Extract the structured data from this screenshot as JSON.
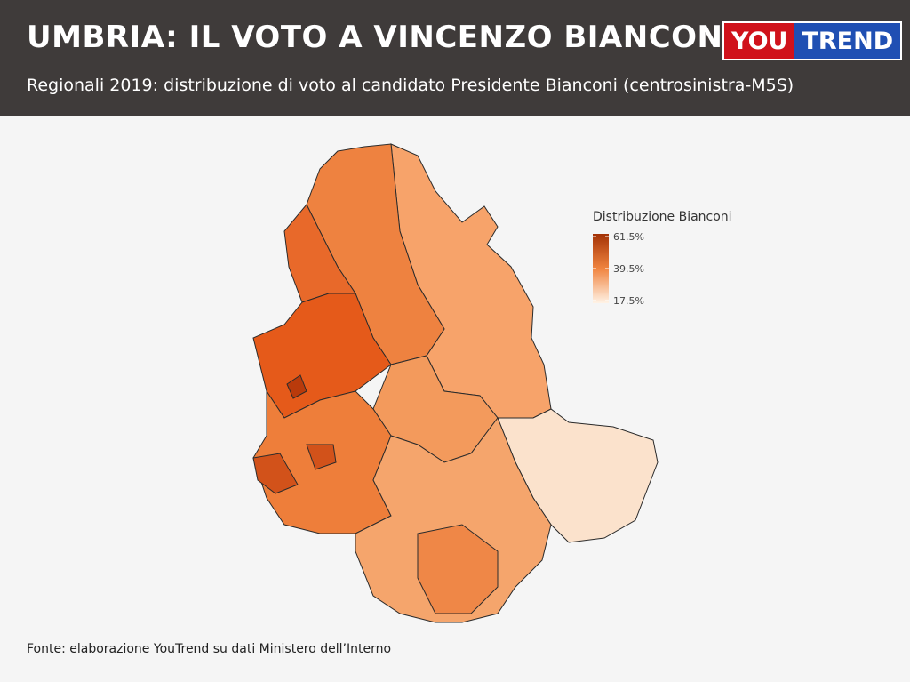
{
  "header": {
    "title": "UMBRIA: IL VOTO A VINCENZO BIANCONI",
    "subtitle": "Regionali 2019: distribuzione di voto al candidato Presidente Bianconi (centrosinistra-M5S)",
    "logo": [
      "YOU",
      "TREND"
    ]
  },
  "legend": {
    "title": "Distribuzione Bianconi",
    "ticks": [
      {
        "value": 61.5,
        "label": "61.5%"
      },
      {
        "value": 39.5,
        "label": "39.5%"
      },
      {
        "value": 17.5,
        "label": "17.5%"
      }
    ]
  },
  "footer": {
    "source": "Fonte: elaborazione YouTrend su dati Ministero dell’Interno"
  }
}
